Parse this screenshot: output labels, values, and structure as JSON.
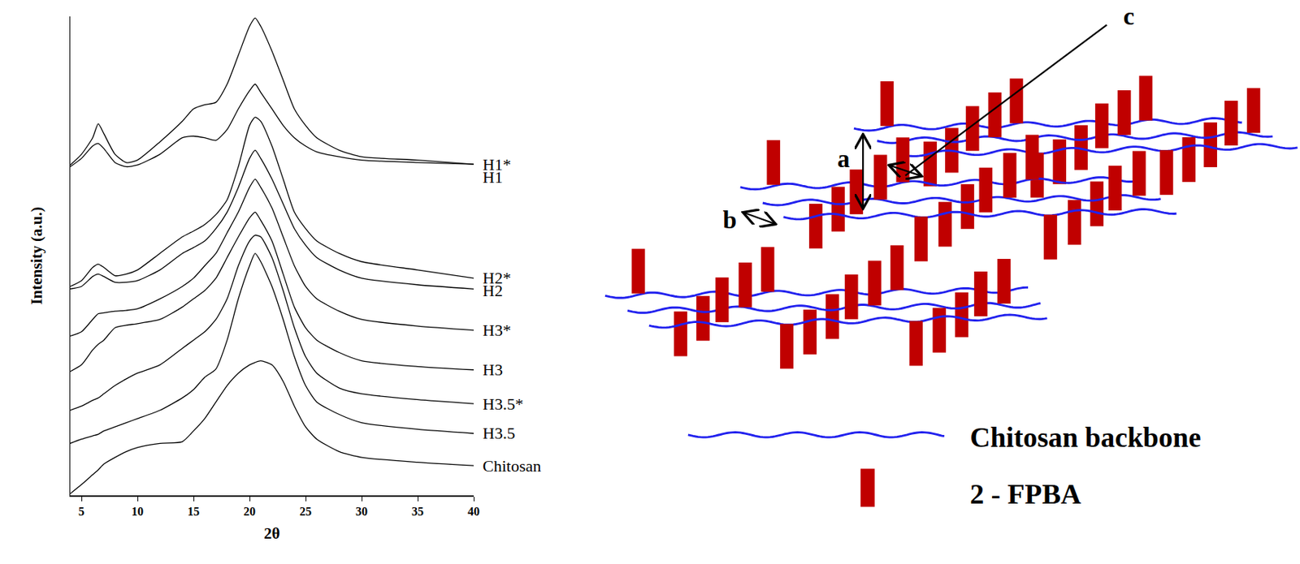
{
  "chart_data": {
    "type": "line",
    "xlabel": "2θ",
    "ylabel": "Intensity (a.u.)",
    "x": [
      4,
      5,
      6,
      6.5,
      7,
      8,
      9,
      10,
      12,
      14,
      15,
      16,
      17,
      18,
      19,
      20,
      20.5,
      21,
      22,
      23,
      24,
      25,
      26,
      28,
      30,
      35,
      40
    ],
    "series": [
      {
        "name": "H1*",
        "color": "#000000",
        "values": [
          400,
          413,
          433,
          450,
          438,
          413,
          403,
          406,
          428,
          453,
          468,
          473,
          476,
          498,
          533,
          568,
          578,
          568,
          538,
          503,
          468,
          448,
          433,
          418,
          410,
          406,
          401
        ]
      },
      {
        "name": "H1",
        "color": "#000000",
        "values": [
          398,
          408,
          423,
          426,
          420,
          403,
          398,
          400,
          413,
          433,
          435,
          433,
          430,
          443,
          468,
          490,
          498,
          488,
          468,
          448,
          433,
          423,
          416,
          410,
          406,
          403,
          401
        ]
      },
      {
        "name": "H2*",
        "color": "#000000",
        "values": [
          253,
          260,
          276,
          280,
          276,
          266,
          268,
          273,
          293,
          313,
          320,
          328,
          340,
          358,
          398,
          448,
          458,
          453,
          423,
          383,
          343,
          323,
          308,
          293,
          283,
          273,
          263
        ]
      },
      {
        "name": "H2",
        "color": "#000000",
        "values": [
          250,
          253,
          265,
          268,
          265,
          258,
          258,
          260,
          273,
          293,
          300,
          308,
          323,
          343,
          373,
          408,
          418,
          408,
          383,
          353,
          323,
          303,
          288,
          273,
          263,
          255,
          250
        ]
      },
      {
        "name": "H3*",
        "color": "#000000",
        "values": [
          193,
          198,
          213,
          220,
          221,
          223,
          224,
          226,
          238,
          253,
          263,
          278,
          293,
          318,
          343,
          373,
          383,
          373,
          348,
          313,
          278,
          253,
          238,
          223,
          213,
          205,
          200
        ]
      },
      {
        "name": "H3",
        "color": "#000000",
        "values": [
          150,
          158,
          176,
          183,
          188,
          203,
          206,
          208,
          213,
          228,
          238,
          248,
          263,
          288,
          313,
          336,
          343,
          333,
          308,
          268,
          228,
          203,
          188,
          173,
          163,
          156,
          152
        ]
      },
      {
        "name": "H3.5*",
        "color": "#000000",
        "values": [
          103,
          108,
          115,
          118,
          123,
          133,
          141,
          148,
          158,
          178,
          188,
          198,
          213,
          238,
          278,
          308,
          315,
          313,
          288,
          248,
          203,
          168,
          148,
          130,
          123,
          116,
          111
        ]
      },
      {
        "name": "H3.5",
        "color": "#000000",
        "values": [
          63,
          68,
          72,
          74,
          78,
          83,
          88,
          93,
          103,
          118,
          128,
          143,
          153,
          188,
          238,
          278,
          293,
          283,
          253,
          213,
          168,
          133,
          113,
          98,
          88,
          80,
          75
        ]
      },
      {
        "name": "Chitosan",
        "color": "#000000",
        "values": [
          2,
          13,
          25,
          31,
          38,
          46,
          53,
          58,
          63,
          65,
          78,
          93,
          113,
          133,
          148,
          158,
          161,
          163,
          158,
          138,
          108,
          83,
          68,
          53,
          46,
          40,
          36
        ]
      }
    ],
    "xlim": [
      4,
      40
    ],
    "xticks": [
      5,
      10,
      15,
      20,
      25,
      30,
      35,
      40
    ],
    "ylim": [
      0,
      580
    ],
    "tick_labels": "x",
    "grid": false
  },
  "diagram": {
    "dimension_labels": [
      "a",
      "b",
      "c"
    ],
    "key_items": [
      {
        "label": "Chitosan backbone",
        "color": "#2222ee"
      },
      {
        "label": "2 - FPBA",
        "color": "#c00000"
      }
    ]
  }
}
